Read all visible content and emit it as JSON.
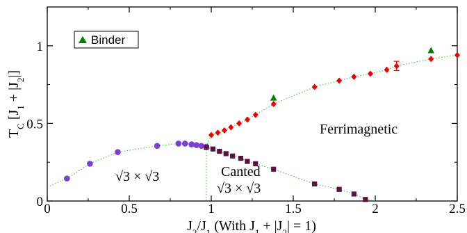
{
  "chart_data": {
    "type": "scatter",
    "xlim": [
      0,
      2.5
    ],
    "ylim": [
      0,
      1.25
    ],
    "x_ticks": [
      "0",
      "0.5",
      "1",
      "1.5",
      "2",
      "2.5"
    ],
    "y_ticks": [
      "0",
      "0.5",
      "1"
    ],
    "x_tick_values": [
      0,
      0.5,
      1,
      1.5,
      2,
      2.5
    ],
    "y_tick_values": [
      0,
      0.5,
      1
    ],
    "xlabel_parts": [
      "J",
      "2",
      "/J",
      "1",
      " (With J",
      "1",
      " + |J",
      "2",
      "| = 1)"
    ],
    "ylabel_parts": [
      "T",
      "C",
      " [J",
      "1",
      " + |J",
      "2",
      "|]"
    ],
    "grid": false,
    "legend_position": "top-left",
    "legend": [
      {
        "name": "Binder",
        "marker": "triangle",
        "color": "#008000"
      }
    ],
    "annotations": {
      "ferri": "Ferrimagnetic",
      "sqrt3_left": "√3 × √3",
      "canted_1": "Canted",
      "canted_2": "√3 × √3"
    },
    "series": [
      {
        "marker": "circle",
        "color": "#7b3fd1",
        "line_color": "#33cc33",
        "x": [
          0.12,
          0.26,
          0.43,
          0.67,
          0.8,
          0.84,
          0.88,
          0.91,
          0.94,
          0.97
        ],
        "y": [
          0.145,
          0.24,
          0.315,
          0.355,
          0.37,
          0.37,
          0.365,
          0.36,
          0.355,
          0.35
        ]
      },
      {
        "marker": "diamond",
        "color": "#ee0000",
        "line_color": "#33cc33",
        "x": [
          1.0,
          1.04,
          1.08,
          1.12,
          1.17,
          1.22,
          1.27,
          1.38,
          1.63,
          1.78,
          1.87,
          1.97,
          2.07,
          2.13,
          2.34,
          2.5
        ],
        "y": [
          0.425,
          0.44,
          0.455,
          0.475,
          0.5,
          0.525,
          0.555,
          0.625,
          0.735,
          0.775,
          0.8,
          0.82,
          0.845,
          0.87,
          0.915,
          0.94
        ],
        "error_index": 13,
        "error": 0.03
      },
      {
        "marker": "square",
        "color": "#5a1240",
        "line_color": "#33cc33",
        "x": [
          0.97,
          1.01,
          1.05,
          1.09,
          1.13,
          1.18,
          1.22,
          1.27,
          1.38,
          1.63,
          1.78,
          1.87,
          1.94
        ],
        "y": [
          0.345,
          0.335,
          0.32,
          0.305,
          0.29,
          0.275,
          0.255,
          0.24,
          0.205,
          0.11,
          0.075,
          0.045,
          0.01
        ]
      },
      {
        "name": "Binder",
        "marker": "triangle",
        "color": "#008000",
        "x": [
          1.38,
          2.34
        ],
        "y": [
          0.665,
          0.97
        ]
      }
    ],
    "boundary_x": 0.97
  }
}
